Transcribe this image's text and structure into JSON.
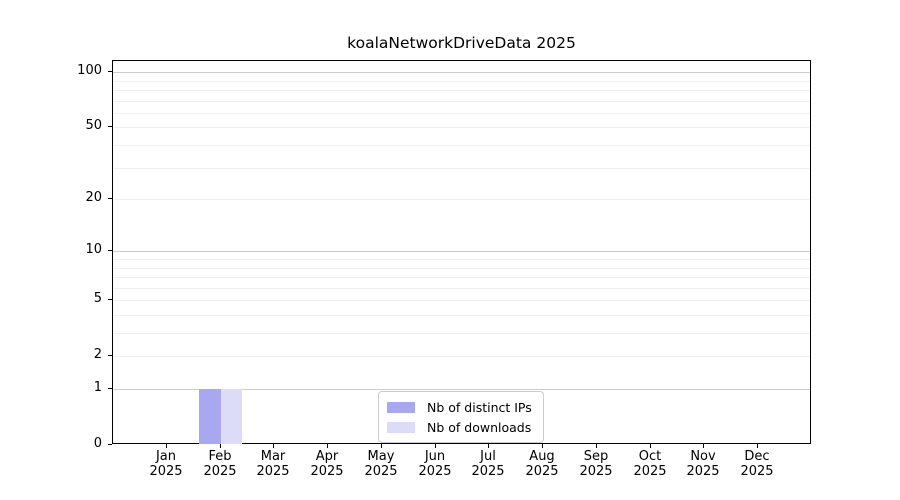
{
  "chart_data": {
    "type": "bar",
    "title": "koalaNetworkDriveData 2025",
    "year_label": "2025",
    "categories": [
      "Jan",
      "Feb",
      "Mar",
      "Apr",
      "May",
      "Jun",
      "Jul",
      "Aug",
      "Sep",
      "Oct",
      "Nov",
      "Dec"
    ],
    "series": [
      {
        "name": "Nb of distinct IPs",
        "color": "#a8a8f0",
        "values": [
          0,
          1,
          0,
          0,
          0,
          0,
          0,
          0,
          0,
          0,
          0,
          0
        ]
      },
      {
        "name": "Nb of downloads",
        "color": "#dcdcf8",
        "values": [
          0,
          1,
          0,
          0,
          0,
          0,
          0,
          0,
          0,
          0,
          0,
          0
        ]
      }
    ],
    "y_axis": {
      "scale": "log1p",
      "ticks": [
        0,
        1,
        2,
        5,
        10,
        20,
        50,
        100
      ],
      "major_gridlines": [
        1,
        10,
        100
      ],
      "minor_gridlines": [
        2,
        3,
        4,
        5,
        6,
        7,
        8,
        9,
        20,
        30,
        40,
        50,
        60,
        70,
        80,
        90
      ],
      "ylim": [
        0,
        115
      ]
    },
    "x_axis": {
      "xlim_units": [
        -1,
        12
      ]
    },
    "grid": "horizontal",
    "legend": {
      "position": "lower center",
      "entries": [
        "Nb of distinct IPs",
        "Nb of downloads"
      ]
    },
    "colors": {
      "bar_distinct_ips": "#a8a8f0",
      "bar_downloads": "#dcdcf8",
      "major_grid": "#cccccc",
      "minor_grid": "#efefef",
      "axis": "#000000",
      "text": "#000000",
      "background": "#ffffff"
    }
  }
}
